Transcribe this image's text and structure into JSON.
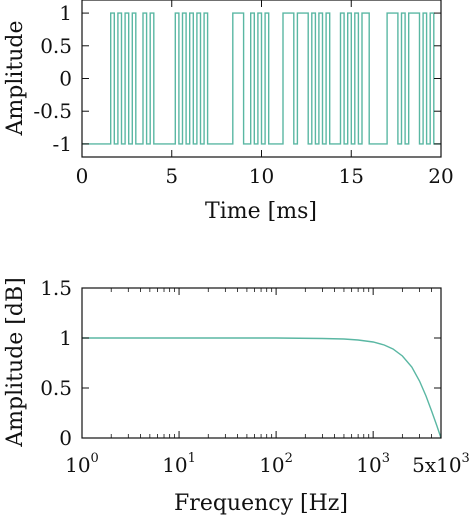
{
  "colors": {
    "line": "#5ab7a3",
    "axes": "#111111",
    "background": "#ffffff"
  },
  "chart_data": [
    {
      "type": "line",
      "title": "",
      "xlabel": "Time [ms]",
      "ylabel": "Amplitude",
      "xlim": [
        0,
        20
      ],
      "ylim": [
        -1.2,
        1.2
      ],
      "xticks": [
        0,
        5,
        10,
        15,
        20
      ],
      "xtick_labels": [
        "0",
        "5",
        "10",
        "15",
        "20"
      ],
      "yticks": [
        1,
        0.5,
        0,
        -0.5,
        -1
      ],
      "ytick_labels": [
        "1",
        "0.5",
        "0",
        "-0.5",
        "-1"
      ],
      "grid": false,
      "legend": "none",
      "series": [
        {
          "x": [
            0,
            1.6,
            1.6,
            1.8,
            1.8,
            2.0,
            2.0,
            2.2,
            2.2,
            2.4,
            2.4,
            2.6,
            2.6,
            2.8,
            2.8,
            3.0,
            3.0,
            3.4,
            3.4,
            3.6,
            3.6,
            3.8,
            3.8,
            4.0,
            4.0,
            5.2,
            5.2,
            5.4,
            5.4,
            5.6,
            5.6,
            5.8,
            5.8,
            6.0,
            6.0,
            6.2,
            6.2,
            6.4,
            6.4,
            6.6,
            6.6,
            6.8,
            6.8,
            7.0,
            7.0,
            8.4,
            8.4,
            9.0,
            9.0,
            9.4,
            9.4,
            9.6,
            9.6,
            9.8,
            9.8,
            10.0,
            10.0,
            10.2,
            10.2,
            10.4,
            10.4,
            11.2,
            11.2,
            11.8,
            11.8,
            12.0,
            12.0,
            12.6,
            12.6,
            12.8,
            12.8,
            13.0,
            13.0,
            13.2,
            13.2,
            13.4,
            13.4,
            13.6,
            13.6,
            13.8,
            13.8,
            14.4,
            14.4,
            14.6,
            14.6,
            14.8,
            14.8,
            15.0,
            15.0,
            15.2,
            15.2,
            15.4,
            15.4,
            15.6,
            15.6,
            16.0,
            16.0,
            17.0,
            17.0,
            17.6,
            17.6,
            17.8,
            17.8,
            18.0,
            18.0,
            18.2,
            18.2,
            18.8,
            18.8,
            19.0,
            19.0,
            19.2,
            19.2,
            19.4,
            19.4,
            19.6,
            19.6,
            20.0
          ],
          "y": [
            -1,
            -1,
            1,
            1,
            -1,
            -1,
            1,
            1,
            -1,
            -1,
            1,
            1,
            -1,
            -1,
            1,
            1,
            -1,
            -1,
            1,
            1,
            -1,
            -1,
            1,
            1,
            -1,
            -1,
            1,
            1,
            -1,
            -1,
            1,
            1,
            -1,
            -1,
            1,
            1,
            -1,
            -1,
            1,
            1,
            -1,
            -1,
            1,
            1,
            -1,
            -1,
            1,
            1,
            -1,
            -1,
            1,
            1,
            -1,
            -1,
            1,
            1,
            -1,
            -1,
            1,
            1,
            -1,
            -1,
            1,
            1,
            -1,
            -1,
            1,
            1,
            -1,
            -1,
            1,
            1,
            -1,
            -1,
            1,
            1,
            -1,
            -1,
            1,
            1,
            -1,
            -1,
            1,
            1,
            -1,
            -1,
            1,
            1,
            -1,
            -1,
            1,
            1,
            -1,
            -1,
            1,
            1,
            -1,
            -1,
            1,
            1,
            -1,
            -1,
            1,
            1,
            -1,
            -1,
            1,
            1,
            -1,
            -1,
            1,
            1,
            -1,
            -1,
            1,
            1,
            -1,
            -1
          ]
        }
      ]
    },
    {
      "type": "line",
      "title": "",
      "xlabel": "Frequency [Hz]",
      "ylabel": "Amplitude [dB]",
      "xscale": "log",
      "xlim": [
        1,
        5000
      ],
      "ylim": [
        0,
        1.5
      ],
      "xticks": [
        1,
        10,
        100,
        1000,
        5000
      ],
      "xtick_labels": [
        {
          "base": "10",
          "exp": "0"
        },
        {
          "base": "10",
          "exp": "1"
        },
        {
          "base": "10",
          "exp": "2"
        },
        {
          "base": "10",
          "exp": "3"
        },
        {
          "base": "5x10",
          "exp": "3"
        }
      ],
      "yticks": [
        1.5,
        1,
        0.5,
        0
      ],
      "ytick_labels": [
        "1.5",
        "1",
        "0.5",
        "0"
      ],
      "grid": false,
      "legend": "none",
      "series": [
        {
          "x": [
            1,
            10,
            100,
            300,
            500,
            700,
            1000,
            1300,
            1600,
            2000,
            2500,
            3000,
            3500,
            4000,
            4500,
            5000
          ],
          "y": [
            1.0,
            1.0,
            1.0,
            0.995,
            0.99,
            0.98,
            0.96,
            0.93,
            0.89,
            0.82,
            0.71,
            0.57,
            0.42,
            0.27,
            0.13,
            0.0
          ]
        }
      ]
    }
  ]
}
